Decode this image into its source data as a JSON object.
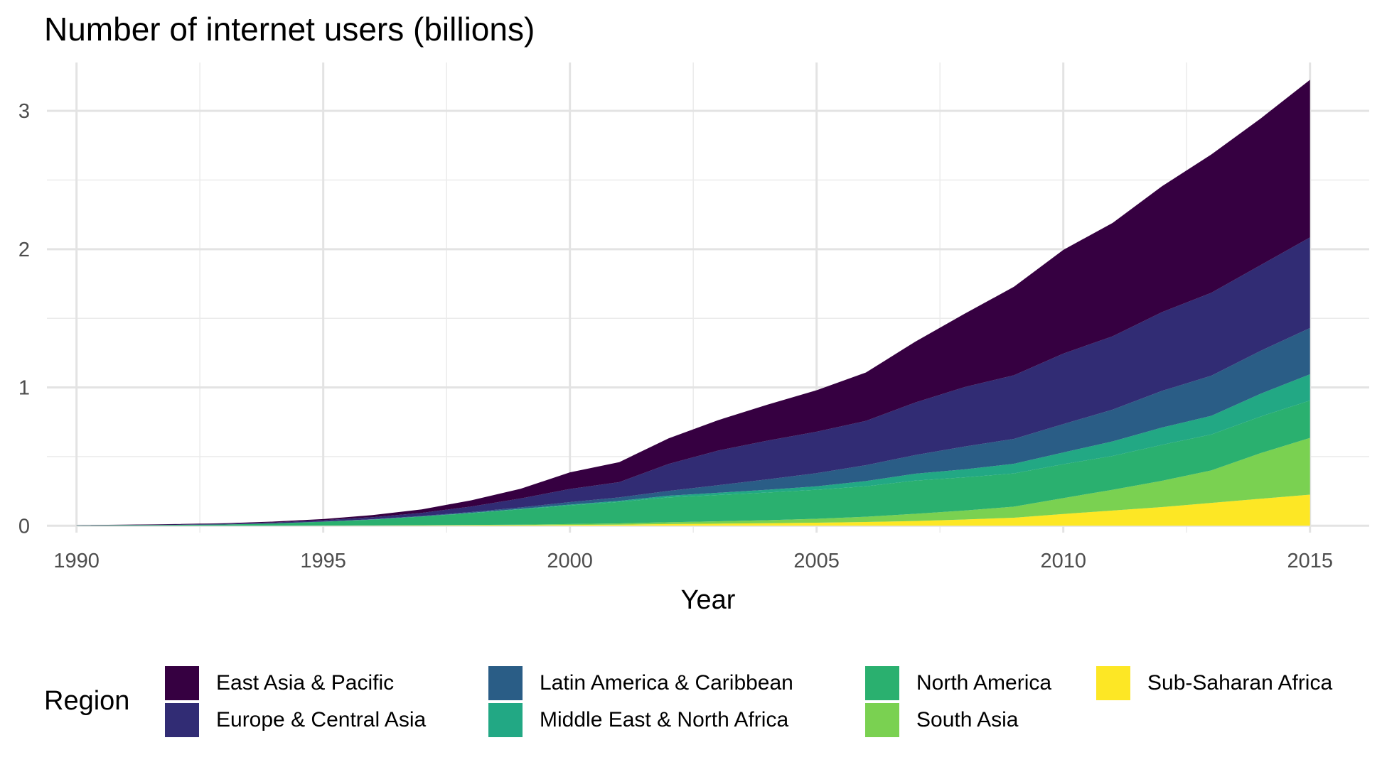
{
  "chart_data": {
    "type": "area",
    "stacked": true,
    "title": "Number of internet users (billions)",
    "xlabel": "Year",
    "ylabel": "",
    "xlim": [
      1989.4,
      2016.2
    ],
    "ylim": [
      -0.05,
      3.35
    ],
    "x_ticks": [
      1990,
      1995,
      2000,
      2005,
      2010,
      2015
    ],
    "y_ticks": [
      0,
      1,
      2,
      3
    ],
    "grid": true,
    "legend_title": "Region",
    "legend_position": "bottom",
    "x": [
      1990,
      1991,
      1992,
      1993,
      1994,
      1995,
      1996,
      1997,
      1998,
      1999,
      2000,
      2001,
      2002,
      2003,
      2004,
      2005,
      2006,
      2007,
      2008,
      2009,
      2010,
      2011,
      2012,
      2013,
      2014,
      2015
    ],
    "series": [
      {
        "name": "Sub-Saharan Africa",
        "color": "#FDE725",
        "values": [
          0,
          0,
          0,
          0,
          0,
          0.001,
          0.001,
          0.002,
          0.003,
          0.004,
          0.006,
          0.008,
          0.012,
          0.015,
          0.018,
          0.022,
          0.027,
          0.034,
          0.045,
          0.058,
          0.085,
          0.11,
          0.135,
          0.165,
          0.195,
          0.225
        ]
      },
      {
        "name": "South Asia",
        "color": "#7AD151",
        "values": [
          0,
          0,
          0,
          0,
          0,
          0,
          0.001,
          0.002,
          0.003,
          0.004,
          0.006,
          0.009,
          0.013,
          0.017,
          0.022,
          0.028,
          0.038,
          0.052,
          0.065,
          0.08,
          0.115,
          0.15,
          0.19,
          0.235,
          0.33,
          0.41
        ]
      },
      {
        "name": "North America",
        "color": "#2AB06F",
        "values": [
          0.002,
          0.004,
          0.006,
          0.009,
          0.016,
          0.028,
          0.042,
          0.062,
          0.085,
          0.11,
          0.135,
          0.155,
          0.18,
          0.19,
          0.2,
          0.21,
          0.22,
          0.24,
          0.24,
          0.24,
          0.245,
          0.245,
          0.26,
          0.26,
          0.265,
          0.27
        ]
      },
      {
        "name": "Middle East & North Africa",
        "color": "#22A884",
        "values": [
          0,
          0,
          0,
          0,
          0,
          0,
          0.001,
          0.001,
          0.002,
          0.004,
          0.006,
          0.008,
          0.012,
          0.016,
          0.02,
          0.025,
          0.038,
          0.05,
          0.058,
          0.07,
          0.085,
          0.105,
          0.125,
          0.135,
          0.165,
          0.19
        ]
      },
      {
        "name": "Latin America & Caribbean",
        "color": "#2A5D86",
        "values": [
          0,
          0,
          0,
          0,
          0.001,
          0.001,
          0.002,
          0.004,
          0.006,
          0.01,
          0.018,
          0.025,
          0.035,
          0.055,
          0.075,
          0.095,
          0.115,
          0.135,
          0.165,
          0.18,
          0.205,
          0.23,
          0.265,
          0.29,
          0.31,
          0.335
        ]
      },
      {
        "name": "Europe & Central Asia",
        "color": "#312C74",
        "values": [
          0.001,
          0.002,
          0.003,
          0.005,
          0.007,
          0.01,
          0.015,
          0.022,
          0.04,
          0.065,
          0.095,
          0.11,
          0.195,
          0.25,
          0.28,
          0.3,
          0.32,
          0.38,
          0.43,
          0.46,
          0.51,
          0.53,
          0.57,
          0.6,
          0.62,
          0.655
        ]
      },
      {
        "name": "East Asia & Pacific",
        "color": "#360041",
        "values": [
          0.001,
          0.002,
          0.003,
          0.004,
          0.006,
          0.008,
          0.015,
          0.025,
          0.045,
          0.07,
          0.12,
          0.145,
          0.185,
          0.22,
          0.26,
          0.3,
          0.35,
          0.44,
          0.53,
          0.64,
          0.75,
          0.82,
          0.91,
          1.0,
          1.06,
          1.14
        ]
      }
    ]
  },
  "legend_columns": [
    [
      "East Asia & Pacific",
      "Europe & Central Asia"
    ],
    [
      "Latin America & Caribbean",
      "Middle East & North Africa"
    ],
    [
      "North America",
      "South Asia"
    ],
    [
      "Sub-Saharan Africa"
    ]
  ]
}
